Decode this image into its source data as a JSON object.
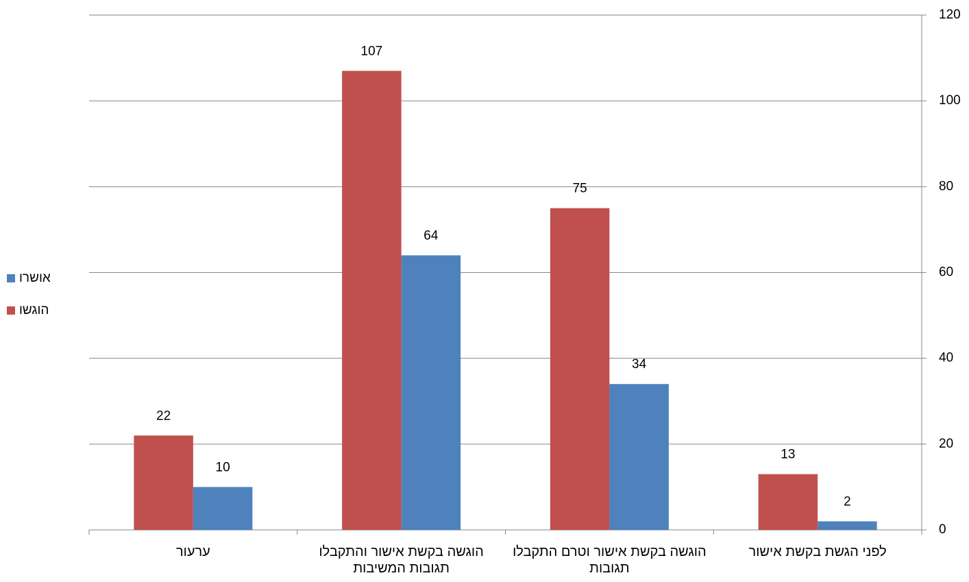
{
  "chart_data": {
    "type": "bar",
    "categories": [
      "לפני הגשת בקשת אישור",
      "הוגשה בקשת אישור וטרם התקבלו תגובות",
      "הוגשה בקשת אישור והתקבלו תגובות המשיבות",
      "ערעור"
    ],
    "series": [
      {
        "name": "הוגשו",
        "color": "#c0504d",
        "values": [
          13,
          75,
          107,
          22
        ]
      },
      {
        "name": "אושרו",
        "color": "#4f81bd",
        "values": [
          2,
          34,
          64,
          10
        ]
      }
    ],
    "ylim": [
      0,
      120
    ],
    "yticks": [
      0,
      20,
      40,
      60,
      80,
      100,
      120
    ],
    "grid": true,
    "categories_direction": "rtl",
    "y_axis_side": "right",
    "legend": "left"
  }
}
